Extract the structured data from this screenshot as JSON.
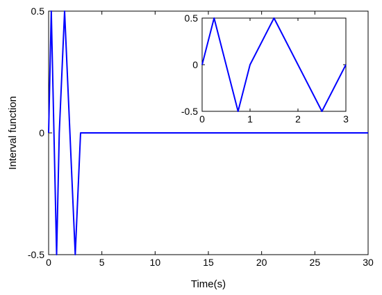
{
  "chart_data": [
    {
      "type": "line",
      "title": "",
      "xlabel": "Time(s)",
      "ylabel": "Interval function",
      "xlim": [
        0,
        30
      ],
      "ylim": [
        -0.5,
        0.5
      ],
      "xticks": [
        "0",
        "5",
        "10",
        "15",
        "20",
        "25",
        "30"
      ],
      "yticks": [
        "-0.5",
        "0",
        "0.5"
      ],
      "grid": false,
      "color": "#0000ff",
      "series": [
        {
          "x": [
            0,
            0.25,
            0.5,
            0.75,
            1,
            1.5,
            2.5,
            3,
            3,
            30
          ],
          "y": [
            0,
            0.5,
            0,
            -0.5,
            0,
            0.5,
            -0.5,
            0,
            0,
            0
          ]
        }
      ]
    },
    {
      "type": "line",
      "title": "",
      "xlabel": "",
      "ylabel": "",
      "xlim": [
        0,
        3
      ],
      "ylim": [
        -0.5,
        0.5
      ],
      "xticks": [
        "0",
        "1",
        "2",
        "3"
      ],
      "yticks": [
        "-0.5",
        "0",
        "0.5"
      ],
      "grid": false,
      "color": "#0000ff",
      "series": [
        {
          "x": [
            0,
            0.25,
            0.5,
            0.75,
            1,
            1.5,
            2.5,
            3
          ],
          "y": [
            0,
            0.5,
            0,
            -0.5,
            0,
            0.5,
            -0.5,
            0
          ]
        }
      ]
    }
  ]
}
